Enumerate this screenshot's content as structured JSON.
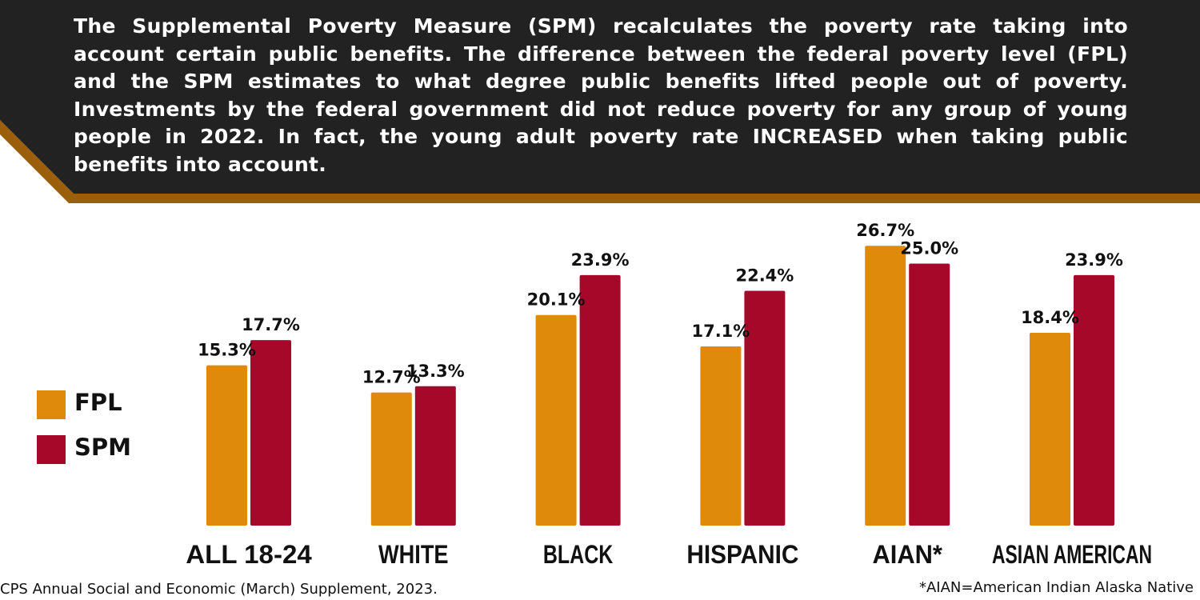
{
  "intro": "The Supplemental Poverty Measure (SPM) recalculates the poverty rate taking into account certain public benefits. The difference between the federal poverty level (FPL) and the SPM estimates to what degree public benefits lifted people out of poverty. Investments by the federal government did not reduce poverty for any group of young people in 2022. In fact, the young adult poverty rate INCREASED when taking public benefits into account.",
  "colors": {
    "banner": "#222222",
    "banner_stripe": "#9b5f0a",
    "fpl": "#e08a0b",
    "spm": "#a6082a"
  },
  "legend": [
    {
      "label": "FPL",
      "color": "#e08a0b"
    },
    {
      "label": "SPM",
      "color": "#a6082a"
    }
  ],
  "chart_data": {
    "type": "bar",
    "categories": [
      "ALL 18-24",
      "WHITE",
      "BLACK",
      "HISPANIC",
      "AIAN*",
      "ASIAN AMERICAN"
    ],
    "series": [
      {
        "name": "FPL",
        "values": [
          15.3,
          12.7,
          20.1,
          17.1,
          26.7,
          18.4
        ],
        "labels": [
          "15.3%",
          "12.7%",
          "20.1%",
          "17.1%",
          "26.7%",
          "18.4%"
        ]
      },
      {
        "name": "SPM",
        "values": [
          17.7,
          13.3,
          23.9,
          22.4,
          25.0,
          23.9
        ],
        "labels": [
          "17.7%",
          "13.3%",
          "23.9%",
          "22.4%",
          "25.0%",
          "23.9%"
        ]
      }
    ],
    "ylim": [
      0,
      27
    ],
    "grid": false,
    "legend_position": "left"
  },
  "source": "CPS Annual Social and Economic (March) Supplement, 2023.",
  "footnote": "*AIAN=American Indian Alaska Native"
}
